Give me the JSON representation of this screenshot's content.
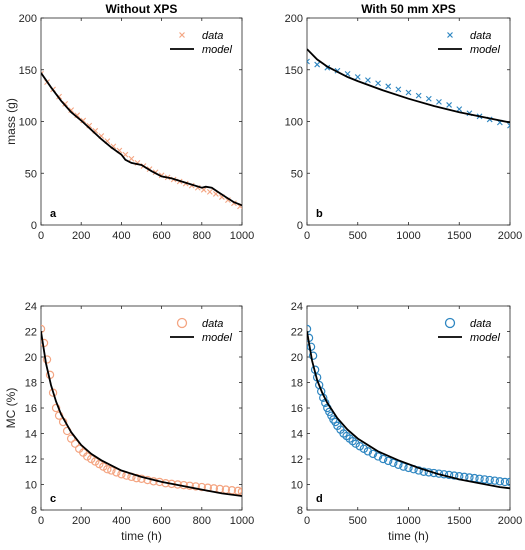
{
  "chart_data": [
    {
      "type": "scatter",
      "panel": "a",
      "title": "Without XPS",
      "xlabel": "",
      "ylabel": "mass (g)",
      "xlim": [
        0,
        1000
      ],
      "ylim": [
        0,
        200
      ],
      "xticks": [
        "0",
        "200",
        "400",
        "600",
        "800",
        "1000"
      ],
      "yticks": [
        "0",
        "50",
        "100",
        "150",
        "200"
      ],
      "legend_position": "top-right",
      "marker": "x",
      "series": [
        {
          "name": "data",
          "color": "#F4A582",
          "x": [
            0,
            30,
            60,
            90,
            120,
            150,
            180,
            210,
            240,
            270,
            300,
            330,
            360,
            390,
            420,
            450,
            480,
            510,
            540,
            570,
            600,
            630,
            660,
            690,
            720,
            750,
            780,
            810,
            840,
            870,
            900,
            930,
            960,
            990
          ],
          "y": [
            146,
            138,
            131,
            124,
            117,
            111,
            106,
            101,
            96,
            91,
            86,
            81,
            76,
            72,
            68,
            64,
            60,
            57,
            54,
            51,
            48,
            46,
            44,
            42,
            40,
            38,
            36,
            34,
            32,
            30,
            27,
            24,
            21,
            18
          ]
        },
        {
          "name": "model",
          "color": "#000000",
          "x": [
            0,
            50,
            100,
            150,
            200,
            250,
            300,
            350,
            400,
            420,
            450,
            500,
            550,
            600,
            650,
            700,
            750,
            800,
            820,
            850,
            880,
            920,
            960,
            1000
          ],
          "y": [
            147,
            133,
            120,
            109,
            101,
            92,
            83,
            75,
            68,
            63,
            60,
            58,
            52,
            47,
            45,
            42,
            39,
            36,
            37,
            36,
            32,
            27,
            22,
            19
          ]
        }
      ]
    },
    {
      "type": "scatter",
      "panel": "b",
      "title": "With 50 mm XPS",
      "xlabel": "",
      "ylabel": "",
      "xlim": [
        0,
        2000
      ],
      "ylim": [
        0,
        200
      ],
      "xticks": [
        "0",
        "500",
        "1000",
        "1500",
        "2000"
      ],
      "yticks": [
        "0",
        "50",
        "100",
        "150",
        "200"
      ],
      "legend_position": "top-right",
      "marker": "x",
      "series": [
        {
          "name": "data",
          "color": "#2E86C1",
          "x": [
            0,
            100,
            200,
            300,
            400,
            500,
            600,
            700,
            800,
            900,
            1000,
            1100,
            1200,
            1300,
            1400,
            1500,
            1600,
            1700,
            1800,
            1900,
            2000
          ],
          "y": [
            158,
            155,
            152,
            149,
            146,
            143,
            140,
            137,
            134,
            131,
            128,
            125,
            122,
            119,
            116,
            112,
            108,
            105,
            102,
            99,
            96
          ]
        },
        {
          "name": "model",
          "color": "#000000",
          "x": [
            0,
            100,
            200,
            300,
            400,
            500,
            750,
            1000,
            1250,
            1500,
            1750,
            2000
          ],
          "y": [
            170,
            160,
            153,
            148,
            143,
            139,
            130,
            122,
            115,
            109,
            104,
            99
          ]
        }
      ]
    },
    {
      "type": "scatter",
      "panel": "c",
      "title": "",
      "xlabel": "time (h)",
      "ylabel": "MC (%)",
      "xlim": [
        0,
        1000
      ],
      "ylim": [
        8,
        24
      ],
      "xticks": [
        "0",
        "200",
        "400",
        "600",
        "800",
        "1000"
      ],
      "yticks": [
        "8",
        "10",
        "12",
        "14",
        "16",
        "18",
        "20",
        "22",
        "24"
      ],
      "legend_position": "top-right",
      "marker": "o",
      "series": [
        {
          "name": "data",
          "color": "#F4A582",
          "x": [
            0,
            15,
            30,
            45,
            60,
            75,
            90,
            110,
            130,
            150,
            170,
            190,
            210,
            230,
            250,
            270,
            290,
            310,
            330,
            350,
            375,
            400,
            425,
            450,
            475,
            500,
            530,
            560,
            590,
            620,
            650,
            680,
            710,
            740,
            770,
            800,
            830,
            860,
            890,
            920,
            950,
            980,
            1000
          ],
          "y": [
            22.2,
            21.1,
            19.8,
            18.6,
            17.2,
            16.0,
            15.4,
            14.9,
            14.2,
            13.6,
            13.2,
            12.8,
            12.5,
            12.2,
            12.0,
            11.8,
            11.6,
            11.4,
            11.2,
            11.1,
            10.95,
            10.8,
            10.7,
            10.6,
            10.5,
            10.45,
            10.35,
            10.25,
            10.2,
            10.1,
            10.05,
            10.0,
            9.95,
            9.9,
            9.85,
            9.8,
            9.75,
            9.7,
            9.65,
            9.6,
            9.55,
            9.5,
            9.45
          ]
        },
        {
          "name": "model",
          "color": "#000000",
          "x": [
            0,
            25,
            50,
            75,
            100,
            150,
            200,
            250,
            300,
            350,
            400,
            500,
            600,
            700,
            800,
            900,
            1000
          ],
          "y": [
            22.0,
            19.5,
            17.8,
            16.5,
            15.5,
            14.1,
            13.1,
            12.4,
            11.9,
            11.5,
            11.1,
            10.6,
            10.2,
            9.9,
            9.6,
            9.3,
            9.1
          ]
        }
      ]
    },
    {
      "type": "scatter",
      "panel": "d",
      "title": "",
      "xlabel": "time (h)",
      "ylabel": "",
      "xlim": [
        0,
        2000
      ],
      "ylim": [
        8,
        24
      ],
      "xticks": [
        "0",
        "500",
        "1000",
        "1500",
        "2000"
      ],
      "yticks": [
        "8",
        "10",
        "12",
        "14",
        "16",
        "18",
        "20",
        "22",
        "24"
      ],
      "legend_position": "top-right",
      "marker": "o",
      "series": [
        {
          "name": "data",
          "color": "#2E86C1",
          "x": [
            0,
            20,
            40,
            60,
            80,
            100,
            120,
            140,
            160,
            180,
            200,
            220,
            240,
            260,
            280,
            300,
            330,
            360,
            390,
            420,
            450,
            480,
            520,
            560,
            600,
            650,
            700,
            750,
            800,
            850,
            900,
            950,
            1000,
            1050,
            1100,
            1150,
            1200,
            1250,
            1300,
            1350,
            1400,
            1450,
            1500,
            1550,
            1600,
            1650,
            1700,
            1750,
            1800,
            1850,
            1900,
            1950,
            2000
          ],
          "y": [
            22.2,
            21.5,
            20.8,
            20.1,
            19.0,
            18.4,
            17.8,
            17.3,
            16.8,
            16.4,
            16.0,
            15.7,
            15.4,
            15.1,
            14.9,
            14.6,
            14.3,
            14.0,
            13.8,
            13.6,
            13.4,
            13.2,
            13.0,
            12.8,
            12.6,
            12.4,
            12.2,
            12.0,
            11.85,
            11.7,
            11.55,
            11.4,
            11.3,
            11.2,
            11.1,
            11.0,
            10.95,
            10.9,
            10.85,
            10.8,
            10.75,
            10.7,
            10.65,
            10.6,
            10.55,
            10.5,
            10.45,
            10.4,
            10.35,
            10.3,
            10.25,
            10.2,
            10.2
          ]
        },
        {
          "name": "model",
          "color": "#000000",
          "x": [
            0,
            50,
            100,
            150,
            200,
            300,
            400,
            500,
            700,
            900,
            1100,
            1300,
            1500,
            1700,
            1900,
            2000
          ],
          "y": [
            22.0,
            19.7,
            18.2,
            17.2,
            16.4,
            15.2,
            14.3,
            13.6,
            12.6,
            11.9,
            11.3,
            10.8,
            10.4,
            10.1,
            9.8,
            9.7
          ]
        }
      ]
    }
  ]
}
